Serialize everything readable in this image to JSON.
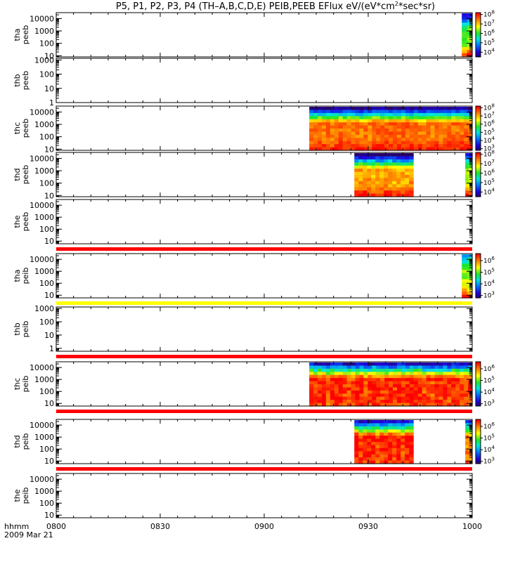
{
  "chart_data": {
    "type": "heatmap",
    "title_parts": [
      "P5, P1, P2, P3, P4 (TH–A,B,C,D,E) PEIB,PEEB EFlux eV/(eV*cm",
      "2",
      "*sec*sr)"
    ],
    "xaxis": {
      "label": "hhmm",
      "date": "2009 Mar 21",
      "ticks": [
        "0800",
        "0830",
        "0900",
        "0930",
        "1000"
      ],
      "range_minutes": [
        480,
        600
      ]
    },
    "panels": [
      {
        "name": "tha-peeb",
        "ylabel": [
          "tha",
          "peeb"
        ],
        "ylim": [
          8,
          30000
        ],
        "ytick_values": [
          10,
          100,
          1000,
          10000
        ],
        "yticks": [
          "10",
          "100",
          "1000",
          "10000"
        ],
        "flag": "none",
        "colorbar": {
          "exps": [
            "4",
            "5",
            "6",
            "7",
            "8"
          ],
          "range": [
            3.5,
            8.2
          ]
        },
        "spectra": [
          {
            "t0": 597,
            "t1": 600,
            "emin": 9,
            "lo": 4,
            "mid": 6.2,
            "hi": 8.0
          }
        ]
      },
      {
        "name": "thb-peeb",
        "ylabel": [
          "thb",
          "peeb"
        ],
        "ylim": [
          1,
          1300
        ],
        "ytick_values": [
          1,
          10,
          100,
          1000
        ],
        "yticks": [
          "1",
          "10",
          "100",
          "1000"
        ],
        "flag": "none",
        "colorbar": null,
        "spectra": []
      },
      {
        "name": "thc-peeb",
        "ylabel": [
          "thc",
          "peeb"
        ],
        "ylim": [
          8,
          30000
        ],
        "ytick_values": [
          10,
          100,
          1000,
          10000
        ],
        "yticks": [
          "10",
          "100",
          "1000",
          "10000"
        ],
        "flag": "none",
        "colorbar": {
          "exps": [
            "3",
            "4",
            "5",
            "6",
            "7",
            "8"
          ],
          "range": [
            2.8,
            8.2
          ]
        },
        "spectra": [
          {
            "t0": 553,
            "t1": 600,
            "emin": 8,
            "lo": 3,
            "mid": 7.5,
            "hi": 8.0
          }
        ]
      },
      {
        "name": "thd-peeb",
        "ylabel": [
          "thd",
          "peeb"
        ],
        "ylim": [
          8,
          30000
        ],
        "ytick_values": [
          10,
          100,
          1000,
          10000
        ],
        "yticks": [
          "10",
          "100",
          "1000",
          "10000"
        ],
        "flag": "none",
        "colorbar": {
          "exps": [
            "4",
            "5",
            "6",
            "7",
            "8"
          ],
          "range": [
            3.5,
            8.2
          ]
        },
        "spectra": [
          {
            "t0": 566,
            "t1": 583,
            "emin": 8,
            "lo": 3.5,
            "mid": 7.3,
            "hi": 8.1
          },
          {
            "t0": 598,
            "t1": 600,
            "emin": 8,
            "lo": 4,
            "mid": 6.5,
            "hi": 8.0
          }
        ]
      },
      {
        "name": "the-peeb",
        "ylabel": [
          "the",
          "peeb"
        ],
        "ylim": [
          6,
          30000
        ],
        "ytick_values": [
          10,
          100,
          1000,
          10000
        ],
        "yticks": [
          "10",
          "100",
          "1000",
          "10000"
        ],
        "flag": "red",
        "colorbar": null,
        "spectra": []
      },
      {
        "name": "tha-peib",
        "ylabel": [
          "tha",
          "peib"
        ],
        "ylim": [
          6,
          30000
        ],
        "ytick_values": [
          10,
          100,
          1000,
          10000
        ],
        "yticks": [
          "10",
          "100",
          "1000",
          "10000"
        ],
        "flag": "yellow",
        "colorbar": {
          "exps": [
            "3",
            "4",
            "5",
            "6"
          ],
          "range": [
            2.8,
            6.6
          ]
        },
        "spectra": [
          {
            "t0": 597,
            "t1": 600,
            "emin": 6,
            "lo": 4,
            "mid": 5.3,
            "hi": 6.4
          }
        ]
      },
      {
        "name": "thb-peib",
        "ylabel": [
          "thb",
          "peib"
        ],
        "ylim": [
          0.6,
          1300
        ],
        "ytick_values": [
          1,
          10,
          100,
          1000
        ],
        "yticks": [
          "1",
          "10",
          "100",
          "1000"
        ],
        "flag": "red",
        "colorbar": null,
        "spectra": []
      },
      {
        "name": "thc-peib",
        "ylabel": [
          "thc",
          "peib"
        ],
        "ylim": [
          6,
          30000
        ],
        "ytick_values": [
          10,
          100,
          1000,
          10000
        ],
        "yticks": [
          "10",
          "100",
          "1000",
          "10000"
        ],
        "flag": "red",
        "colorbar": {
          "exps": [
            "3",
            "4",
            "5",
            "6"
          ],
          "range": [
            2.8,
            6.6
          ]
        },
        "spectra": [
          {
            "t0": 553,
            "t1": 600,
            "emin": 6,
            "lo": 3.2,
            "mid": 6.4,
            "hi": 6.3
          }
        ]
      },
      {
        "name": "thd-peib",
        "ylabel": [
          "thd",
          "peib"
        ],
        "ylim": [
          6,
          30000
        ],
        "ytick_values": [
          10,
          100,
          1000,
          10000
        ],
        "yticks": [
          "10",
          "100",
          "1000",
          "10000"
        ],
        "flag": "red",
        "colorbar": {
          "exps": [
            "3",
            "4",
            "5",
            "6"
          ],
          "range": [
            2.8,
            6.6
          ]
        },
        "spectra": [
          {
            "t0": 566,
            "t1": 583,
            "emin": 6,
            "lo": 3.2,
            "mid": 6.4,
            "hi": 6.3
          },
          {
            "t0": 598,
            "t1": 600,
            "emin": 6,
            "lo": 3.5,
            "mid": 6.0,
            "hi": 6.2
          }
        ]
      },
      {
        "name": "the-peib",
        "ylabel": [
          "the",
          "peib"
        ],
        "ylim": [
          6,
          30000
        ],
        "ytick_values": [
          10,
          100,
          1000,
          10000
        ],
        "yticks": [
          "10",
          "100",
          "1000",
          "10000"
        ],
        "flag": "none",
        "colorbar": null,
        "spectra": []
      }
    ],
    "flag_colors": {
      "red": "#ff0000",
      "yellow": "#ffff00"
    }
  }
}
